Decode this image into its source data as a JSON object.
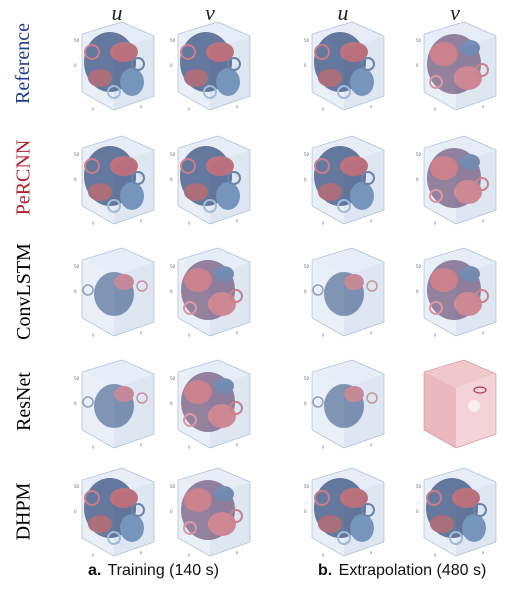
{
  "columns": [
    "u",
    "v",
    "u",
    "v"
  ],
  "rows": [
    "Reference",
    "PeRCNN",
    "ConvLSTM",
    "ResNet",
    "DHPM"
  ],
  "captions": [
    {
      "label": "a.",
      "text": "Training (140 s)"
    },
    {
      "label": "b.",
      "text": "Extrapolation (480 s)"
    }
  ]
}
